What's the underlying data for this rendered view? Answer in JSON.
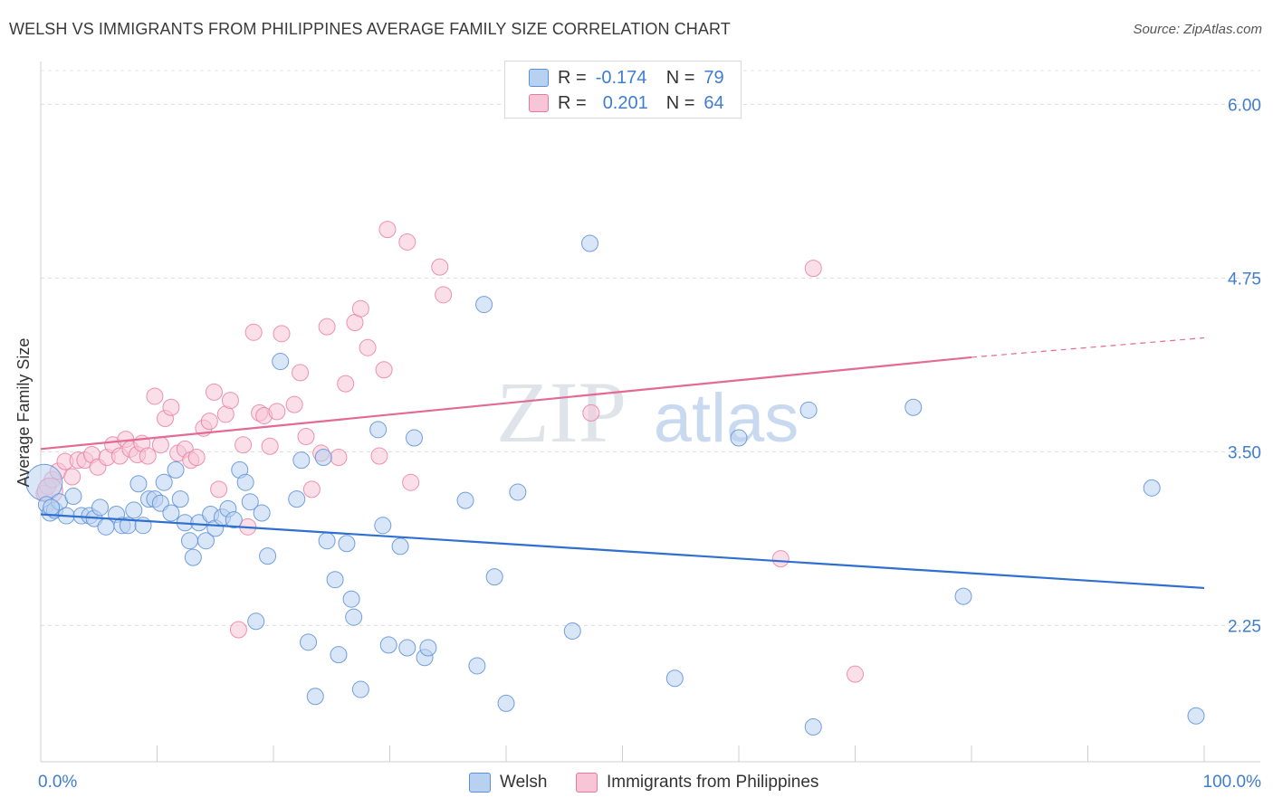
{
  "title": "WELSH VS IMMIGRANTS FROM PHILIPPINES AVERAGE FAMILY SIZE CORRELATION CHART",
  "source": "Source: ZipAtlas.com",
  "watermark": {
    "zip": "ZIP",
    "atlas": "atlas"
  },
  "legend_top": [
    {
      "r_label": "R =",
      "r_value": "-0.174",
      "n_label": "N =",
      "n_value": "79"
    },
    {
      "r_label": "R =",
      "r_value": "0.201",
      "n_label": "N =",
      "n_value": "64"
    }
  ],
  "legend_bottom": [
    "Welsh",
    "Immigrants from Philippines"
  ],
  "colors": {
    "welsh": "#5b8fd9",
    "welsh_fill": "#b9d1f1",
    "phil": "#e8799c",
    "phil_fill": "#f7c5d5",
    "axis_text": "#3f7dd1",
    "trend_blue": "#2f6fd0",
    "trend_pink": "#e36a93"
  },
  "chart_data": {
    "type": "scatter",
    "title": "WELSH VS IMMIGRANTS FROM PHILIPPINES AVERAGE FAMILY SIZE CORRELATION CHART",
    "xlabel": "",
    "ylabel": "Average Family Size",
    "xlim": [
      0,
      100
    ],
    "ylim": [
      1.25,
      6.2
    ],
    "x_tick_labels": [
      "0.0%",
      "100.0%"
    ],
    "y_ticks": [
      2.25,
      3.5,
      4.75,
      6.0
    ],
    "y_tick_labels": [
      "2.25",
      "3.50",
      "4.75",
      "6.00"
    ],
    "grid": true,
    "legend_placement": "top-center",
    "series": [
      {
        "name": "Welsh",
        "R": -0.174,
        "N": 79,
        "trend": [
          [
            0,
            3.05
          ],
          [
            100,
            2.52
          ]
        ],
        "points": [
          [
            0.3,
            3.28
          ],
          [
            0.5,
            3.12
          ],
          [
            0.8,
            3.06
          ],
          [
            1.2,
            3.08
          ],
          [
            1.6,
            3.14
          ],
          [
            2.2,
            3.04
          ],
          [
            2.8,
            3.18
          ],
          [
            3.5,
            3.04
          ],
          [
            4.2,
            3.04
          ],
          [
            4.6,
            3.02
          ],
          [
            5.1,
            3.1
          ],
          [
            5.6,
            2.96
          ],
          [
            6.5,
            3.05
          ],
          [
            7.0,
            2.97
          ],
          [
            7.5,
            2.97
          ],
          [
            8.0,
            3.08
          ],
          [
            8.4,
            3.27
          ],
          [
            8.8,
            2.97
          ],
          [
            9.3,
            3.16
          ],
          [
            9.8,
            3.16
          ],
          [
            10.3,
            3.13
          ],
          [
            10.6,
            3.28
          ],
          [
            11.2,
            3.06
          ],
          [
            11.6,
            3.37
          ],
          [
            12.0,
            3.16
          ],
          [
            12.4,
            2.99
          ],
          [
            12.8,
            2.86
          ],
          [
            13.1,
            2.74
          ],
          [
            13.6,
            2.99
          ],
          [
            14.2,
            2.86
          ],
          [
            14.6,
            3.05
          ],
          [
            15.0,
            2.95
          ],
          [
            15.6,
            3.03
          ],
          [
            16.1,
            3.09
          ],
          [
            16.6,
            3.01
          ],
          [
            17.1,
            3.37
          ],
          [
            17.6,
            3.28
          ],
          [
            18.0,
            3.14
          ],
          [
            18.5,
            2.28
          ],
          [
            19.0,
            3.06
          ],
          [
            19.5,
            2.75
          ],
          [
            20.6,
            4.15
          ],
          [
            22.0,
            3.16
          ],
          [
            22.4,
            3.44
          ],
          [
            23.0,
            2.13
          ],
          [
            23.6,
            1.74
          ],
          [
            24.3,
            3.46
          ],
          [
            24.6,
            2.86
          ],
          [
            25.3,
            2.58
          ],
          [
            25.6,
            2.04
          ],
          [
            26.3,
            2.84
          ],
          [
            26.7,
            2.44
          ],
          [
            26.9,
            2.31
          ],
          [
            27.5,
            1.79
          ],
          [
            29.0,
            3.66
          ],
          [
            29.4,
            2.97
          ],
          [
            29.9,
            2.11
          ],
          [
            30.9,
            2.82
          ],
          [
            31.5,
            2.09
          ],
          [
            32.1,
            3.6
          ],
          [
            33.0,
            2.02
          ],
          [
            33.3,
            2.09
          ],
          [
            36.5,
            3.15
          ],
          [
            37.5,
            1.96
          ],
          [
            38.1,
            4.56
          ],
          [
            39.0,
            2.6
          ],
          [
            40.0,
            1.69
          ],
          [
            41.0,
            3.21
          ],
          [
            45.7,
            2.21
          ],
          [
            47.2,
            5.0
          ],
          [
            54.5,
            1.87
          ],
          [
            60.0,
            3.6
          ],
          [
            66.0,
            3.8
          ],
          [
            66.4,
            1.52
          ],
          [
            75.0,
            3.82
          ],
          [
            79.3,
            2.46
          ],
          [
            95.5,
            3.24
          ],
          [
            99.3,
            1.6
          ],
          [
            0.9,
            3.1
          ]
        ]
      },
      {
        "name": "Immigrants from Philippines",
        "R": 0.201,
        "N": 64,
        "trend": [
          [
            0,
            3.52
          ],
          [
            80,
            4.18
          ]
        ],
        "trend_dashed": [
          [
            80,
            4.18
          ],
          [
            100,
            4.32
          ]
        ],
        "points": [
          [
            0.3,
            3.2
          ],
          [
            0.6,
            3.25
          ],
          [
            1.0,
            3.3
          ],
          [
            1.5,
            3.36
          ],
          [
            2.1,
            3.43
          ],
          [
            2.7,
            3.32
          ],
          [
            3.2,
            3.44
          ],
          [
            3.8,
            3.44
          ],
          [
            4.4,
            3.48
          ],
          [
            4.9,
            3.39
          ],
          [
            5.7,
            3.46
          ],
          [
            6.2,
            3.55
          ],
          [
            6.8,
            3.47
          ],
          [
            7.3,
            3.59
          ],
          [
            7.7,
            3.52
          ],
          [
            8.3,
            3.48
          ],
          [
            8.7,
            3.56
          ],
          [
            9.2,
            3.47
          ],
          [
            9.8,
            3.9
          ],
          [
            10.3,
            3.55
          ],
          [
            10.7,
            3.74
          ],
          [
            11.2,
            3.82
          ],
          [
            11.8,
            3.49
          ],
          [
            12.4,
            3.52
          ],
          [
            12.9,
            3.44
          ],
          [
            13.4,
            3.46
          ],
          [
            14.0,
            3.67
          ],
          [
            14.5,
            3.72
          ],
          [
            14.9,
            3.93
          ],
          [
            15.3,
            3.23
          ],
          [
            15.9,
            3.77
          ],
          [
            16.3,
            3.87
          ],
          [
            17.0,
            2.22
          ],
          [
            17.4,
            3.55
          ],
          [
            17.8,
            2.96
          ],
          [
            18.3,
            4.36
          ],
          [
            18.8,
            3.78
          ],
          [
            19.2,
            3.76
          ],
          [
            19.7,
            3.54
          ],
          [
            20.3,
            3.79
          ],
          [
            20.7,
            4.35
          ],
          [
            21.8,
            3.84
          ],
          [
            22.3,
            4.07
          ],
          [
            22.8,
            3.61
          ],
          [
            23.3,
            3.23
          ],
          [
            24.1,
            3.49
          ],
          [
            24.6,
            4.4
          ],
          [
            25.6,
            3.46
          ],
          [
            26.2,
            3.99
          ],
          [
            27.0,
            4.43
          ],
          [
            27.5,
            4.53
          ],
          [
            28.1,
            4.25
          ],
          [
            29.1,
            3.47
          ],
          [
            29.5,
            4.09
          ],
          [
            29.8,
            5.1
          ],
          [
            31.5,
            5.01
          ],
          [
            31.8,
            3.28
          ],
          [
            34.3,
            4.83
          ],
          [
            34.6,
            4.63
          ],
          [
            47.3,
            3.78
          ],
          [
            63.6,
            2.73
          ],
          [
            66.4,
            4.82
          ],
          [
            70.0,
            1.9
          ],
          [
            0.8,
            3.22
          ]
        ]
      }
    ]
  }
}
